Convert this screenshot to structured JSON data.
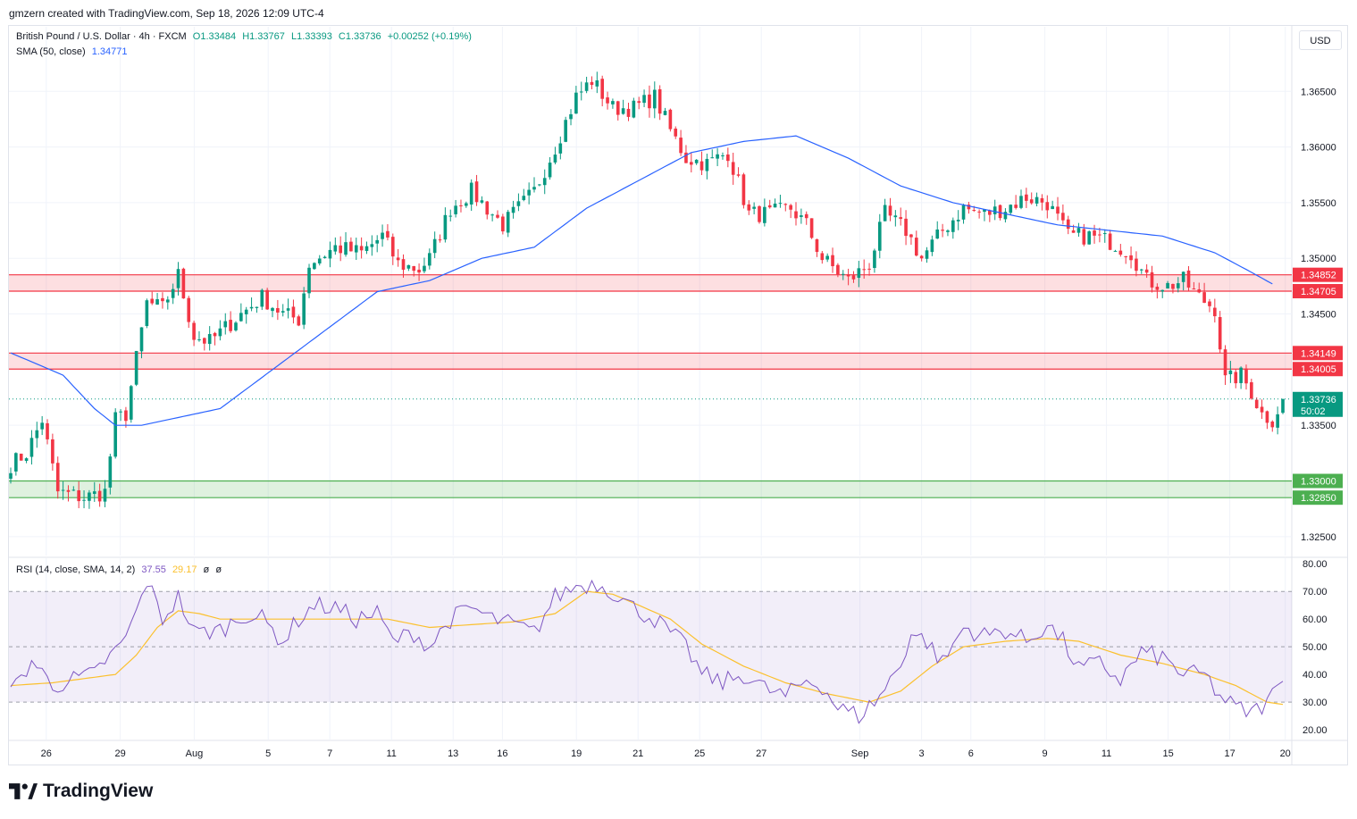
{
  "header": {
    "created_by": "gmzern created with TradingView.com, Sep 18, 2026 12:09 UTC-4"
  },
  "legend": {
    "symbol": "British Pound / U.S. Dollar · 4h · FXCM",
    "open": "O1.33484",
    "high": "H1.33767",
    "low": "L1.33393",
    "close": "C1.33736",
    "change": "+0.00252 (+0.19%)",
    "sma_label": "SMA (50, close)",
    "sma_value": "1.34771"
  },
  "rsi_legend": {
    "label": "RSI (14, close, SMA, 14, 2)",
    "rsi_value": "37.55",
    "sma_value": "29.17",
    "extra1": "ø",
    "extra2": "ø"
  },
  "currency_button": "USD",
  "logo_text": "TradingView",
  "colors": {
    "up": "#089981",
    "down": "#f23645",
    "sma": "#2962ff",
    "rsi": "#7e57c2",
    "rsi_ma": "#fbc02d",
    "resistance_zone": "#f23645",
    "support_zone": "#4caf50"
  },
  "chart_data": {
    "type": "candlestick",
    "timeframe": "4h",
    "price_axis_ticks": [
      "1.36500",
      "1.36000",
      "1.35500",
      "1.35000",
      "1.34500",
      "1.33500",
      "1.32500"
    ],
    "price_ylim": [
      1.3233,
      1.3708
    ],
    "x_ticks": [
      "26",
      "29",
      "Aug",
      "5",
      "7",
      "11",
      "13",
      "16",
      "19",
      "21",
      "25",
      "27",
      "Sep",
      "3",
      "6",
      "9",
      "11",
      "15",
      "17",
      "20"
    ],
    "zones": [
      {
        "name": "resistance",
        "top": 1.34852,
        "bottom": 1.34705,
        "top_label": "1.34852",
        "bottom_label": "1.34705"
      },
      {
        "name": "resistance",
        "top": 1.34149,
        "bottom": 1.34005,
        "top_label": "1.34149",
        "bottom_label": "1.34005"
      },
      {
        "name": "support",
        "top": 1.33,
        "bottom": 1.3285,
        "top_label": "1.33000",
        "bottom_label": "1.32850"
      }
    ],
    "last_price": {
      "value": 1.33736,
      "label": "1.33736",
      "countdown": "50:02"
    },
    "sma_label": "1.34771",
    "price_keypoints": [
      [
        0,
        1.3315
      ],
      [
        3,
        1.3325
      ],
      [
        6,
        1.3355
      ],
      [
        9,
        1.329
      ],
      [
        14,
        1.3285
      ],
      [
        18,
        1.329
      ],
      [
        20,
        1.3355
      ],
      [
        22,
        1.336
      ],
      [
        26,
        1.346
      ],
      [
        29,
        1.3455
      ],
      [
        32,
        1.3485
      ],
      [
        35,
        1.343
      ],
      [
        38,
        1.3425
      ],
      [
        44,
        1.345
      ],
      [
        48,
        1.3465
      ],
      [
        52,
        1.345
      ],
      [
        55,
        1.3445
      ],
      [
        57,
        1.3495
      ],
      [
        62,
        1.351
      ],
      [
        67,
        1.3505
      ],
      [
        71,
        1.352
      ],
      [
        74,
        1.3495
      ],
      [
        78,
        1.349
      ],
      [
        80,
        1.35
      ],
      [
        84,
        1.3545
      ],
      [
        88,
        1.356
      ],
      [
        94,
        1.353
      ],
      [
        100,
        1.356
      ],
      [
        104,
        1.36
      ],
      [
        108,
        1.3645
      ],
      [
        111,
        1.366
      ],
      [
        115,
        1.3635
      ],
      [
        119,
        1.3635
      ],
      [
        123,
        1.3645
      ],
      [
        126,
        1.3615
      ],
      [
        129,
        1.359
      ],
      [
        133,
        1.3585
      ],
      [
        137,
        1.3595
      ],
      [
        141,
        1.354
      ],
      [
        145,
        1.354
      ],
      [
        149,
        1.3545
      ],
      [
        152,
        1.353
      ],
      [
        155,
        1.35
      ],
      [
        160,
        1.348
      ],
      [
        164,
        1.3495
      ],
      [
        167,
        1.354
      ],
      [
        171,
        1.3525
      ],
      [
        174,
        1.35
      ],
      [
        178,
        1.3525
      ],
      [
        182,
        1.3545
      ],
      [
        186,
        1.354
      ],
      [
        190,
        1.3545
      ],
      [
        194,
        1.3555
      ],
      [
        198,
        1.355
      ],
      [
        202,
        1.352
      ],
      [
        206,
        1.352
      ],
      [
        210,
        1.3515
      ],
      [
        214,
        1.3505
      ],
      [
        217,
        1.348
      ],
      [
        221,
        1.3475
      ],
      [
        224,
        1.348
      ],
      [
        227,
        1.3465
      ],
      [
        230,
        1.3455
      ],
      [
        232,
        1.339
      ],
      [
        235,
        1.3395
      ],
      [
        237,
        1.338
      ],
      [
        239,
        1.336
      ],
      [
        241,
        1.3355
      ],
      [
        243,
        1.3372
      ]
    ],
    "sma_keypoints": [
      [
        0,
        1.3415
      ],
      [
        10,
        1.3395
      ],
      [
        16,
        1.3365
      ],
      [
        20,
        1.335
      ],
      [
        25,
        1.335
      ],
      [
        30,
        1.3355
      ],
      [
        40,
        1.3365
      ],
      [
        50,
        1.34
      ],
      [
        60,
        1.3435
      ],
      [
        70,
        1.347
      ],
      [
        80,
        1.348
      ],
      [
        90,
        1.35
      ],
      [
        100,
        1.351
      ],
      [
        110,
        1.3545
      ],
      [
        120,
        1.357
      ],
      [
        130,
        1.3595
      ],
      [
        140,
        1.3605
      ],
      [
        150,
        1.361
      ],
      [
        160,
        1.359
      ],
      [
        170,
        1.3565
      ],
      [
        180,
        1.355
      ],
      [
        190,
        1.354
      ],
      [
        200,
        1.353
      ],
      [
        210,
        1.3525
      ],
      [
        220,
        1.352
      ],
      [
        230,
        1.3505
      ],
      [
        236,
        1.349
      ],
      [
        241,
        1.3477
      ]
    ],
    "rsi": {
      "ticks": [
        "80.00",
        "70.00",
        "60.00",
        "50.00",
        "40.00",
        "30.00",
        "20.00"
      ],
      "ylim": [
        16.5,
        82
      ],
      "bands": [
        30,
        70
      ],
      "mid": 50,
      "rsi_keypoints": [
        [
          0,
          33
        ],
        [
          4,
          45
        ],
        [
          8,
          36
        ],
        [
          12,
          38
        ],
        [
          16,
          40
        ],
        [
          18,
          45
        ],
        [
          21,
          50
        ],
        [
          24,
          62
        ],
        [
          26,
          74
        ],
        [
          29,
          60
        ],
        [
          32,
          68
        ],
        [
          35,
          55
        ],
        [
          40,
          56
        ],
        [
          45,
          62
        ],
        [
          48,
          60
        ],
        [
          52,
          52
        ],
        [
          55,
          60
        ],
        [
          58,
          65
        ],
        [
          62,
          64
        ],
        [
          66,
          60
        ],
        [
          70,
          62
        ],
        [
          73,
          52
        ],
        [
          77,
          55
        ],
        [
          80,
          50
        ],
        [
          84,
          60
        ],
        [
          88,
          64
        ],
        [
          92,
          60
        ],
        [
          96,
          58
        ],
        [
          100,
          55
        ],
        [
          104,
          68
        ],
        [
          108,
          72
        ],
        [
          112,
          73
        ],
        [
          115,
          70
        ],
        [
          119,
          64
        ],
        [
          123,
          60
        ],
        [
          126,
          55
        ],
        [
          129,
          50
        ],
        [
          132,
          40
        ],
        [
          136,
          37
        ],
        [
          140,
          40
        ],
        [
          144,
          35
        ],
        [
          148,
          32
        ],
        [
          152,
          38
        ],
        [
          155,
          36
        ],
        [
          158,
          28
        ],
        [
          162,
          25
        ],
        [
          166,
          32
        ],
        [
          170,
          44
        ],
        [
          172,
          55
        ],
        [
          175,
          52
        ],
        [
          178,
          44
        ],
        [
          182,
          57
        ],
        [
          186,
          54
        ],
        [
          190,
          56
        ],
        [
          194,
          52
        ],
        [
          198,
          58
        ],
        [
          201,
          52
        ],
        [
          204,
          42
        ],
        [
          208,
          44
        ],
        [
          212,
          38
        ],
        [
          216,
          48
        ],
        [
          220,
          46
        ],
        [
          224,
          40
        ],
        [
          228,
          40
        ],
        [
          231,
          32
        ],
        [
          234,
          28
        ],
        [
          237,
          26
        ],
        [
          240,
          30
        ],
        [
          243,
          37.55
        ]
      ],
      "ma_keypoints": [
        [
          0,
          36
        ],
        [
          8,
          37
        ],
        [
          16,
          39
        ],
        [
          20,
          40
        ],
        [
          24,
          47
        ],
        [
          28,
          57
        ],
        [
          32,
          63
        ],
        [
          36,
          62
        ],
        [
          40,
          60
        ],
        [
          48,
          60
        ],
        [
          56,
          60
        ],
        [
          64,
          60
        ],
        [
          72,
          60
        ],
        [
          80,
          57
        ],
        [
          88,
          58
        ],
        [
          96,
          59
        ],
        [
          104,
          62
        ],
        [
          110,
          70
        ],
        [
          115,
          69
        ],
        [
          120,
          65
        ],
        [
          126,
          60
        ],
        [
          132,
          51
        ],
        [
          140,
          43
        ],
        [
          148,
          37
        ],
        [
          156,
          33
        ],
        [
          164,
          30
        ],
        [
          170,
          34
        ],
        [
          176,
          43
        ],
        [
          182,
          50
        ],
        [
          190,
          52
        ],
        [
          198,
          53
        ],
        [
          204,
          52
        ],
        [
          212,
          47
        ],
        [
          220,
          44
        ],
        [
          228,
          40
        ],
        [
          234,
          36
        ],
        [
          240,
          30
        ],
        [
          243,
          29.17
        ]
      ]
    }
  }
}
